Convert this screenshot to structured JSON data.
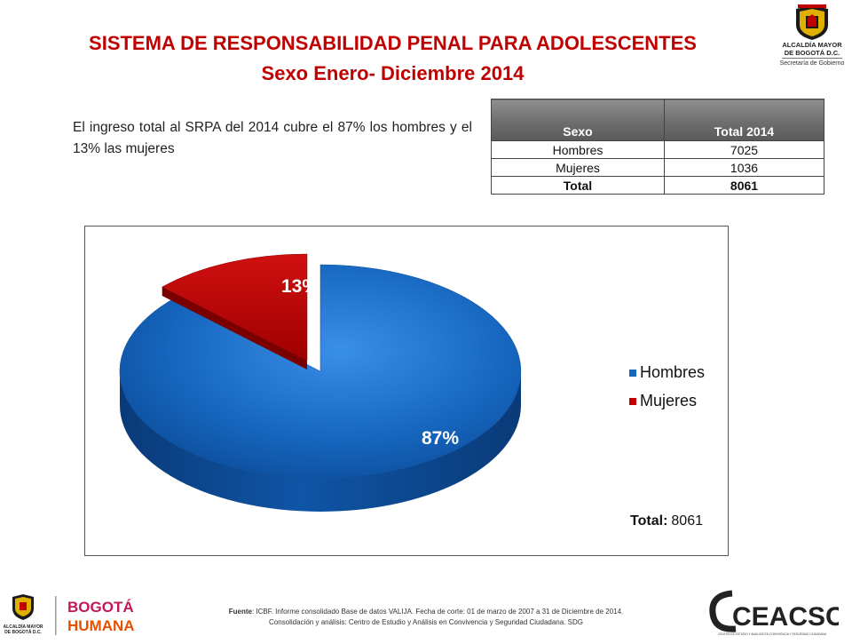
{
  "header": {
    "title": "SISTEMA DE RESPONSABILIDAD PENAL PARA ADOLESCENTES",
    "subtitle": "Sexo Enero- Diciembre 2014"
  },
  "logo_top": {
    "line1": "ALCALDÍA MAYOR",
    "line2": "DE BOGOTÁ D.C.",
    "line3": "Secretaría de Gobierno"
  },
  "summary": "El ingreso total al SRPA del 2014 cubre el 87% los hombres y el 13% las mujeres",
  "table": {
    "headers": [
      "Sexo",
      "Total 2014"
    ],
    "rows": [
      [
        "Hombres",
        "7025"
      ],
      [
        "Mujeres",
        "1036"
      ]
    ],
    "total": [
      "Total",
      "8061"
    ]
  },
  "chart_data": {
    "type": "pie",
    "title": "",
    "categories": [
      "Hombres",
      "Mujeres"
    ],
    "values": [
      7025,
      1036
    ],
    "labels": [
      "87%",
      "13%"
    ],
    "colors": [
      "#1666bf",
      "#c00000"
    ],
    "legend_position": "right",
    "annotation_label": "Total:",
    "annotation_value": "8061"
  },
  "footer": {
    "source_prefix": "Fuente",
    "source": ": ICBF. Informe consolidado Base de datos VALIJA. Fecha de corte: 01 de marzo de 2007 a 31 de Diciembre de 2014.",
    "consolidation": "Consolidación y análisis: Centro de Estudio y Análisis en Convivencia y Seguridad Ciudadana. SDG",
    "left_logo_line1": "ALCALDÍA MAYOR",
    "left_logo_line2": "DE BOGOTÁ D.C.",
    "brand_line1": "BOGOTÁ",
    "brand_line2": "HUMANA",
    "right_logo": "CEACSC",
    "right_logo_caption": "CENTRO DE ESTUDIO Y ANÁLISIS EN CONVIVENCIA Y SEGURIDAD CIUDADANA"
  }
}
